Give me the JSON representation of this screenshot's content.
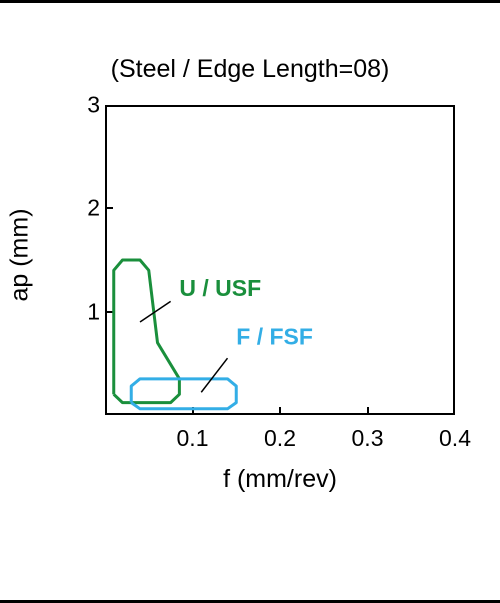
{
  "chart": {
    "type": "region-outline",
    "title": "(Steel / Edge Length=08)",
    "title_fontsize": 25,
    "title_color": "#000000",
    "background_color": "#ffffff",
    "border_color": "#000000",
    "border_width": 2,
    "xlabel": "f (mm/rev)",
    "ylabel": "ap (mm)",
    "label_fontsize": 25,
    "tick_fontsize": 23,
    "xlim": [
      0,
      0.4
    ],
    "ylim": [
      0,
      3
    ],
    "xticks": [
      0,
      0.1,
      0.2,
      0.3,
      0.4
    ],
    "yticks": [
      0,
      1,
      2,
      3
    ],
    "xtick_labels": [
      "",
      "0.1",
      "0.2",
      "0.3",
      "0.4"
    ],
    "ytick_labels": [
      "",
      "1",
      "2",
      "3"
    ],
    "series": {
      "u_usf": {
        "label": "U / USF",
        "color": "#1a8f3c",
        "line_width": 3,
        "points": [
          [
            0.01,
            0.2
          ],
          [
            0.01,
            1.4
          ],
          [
            0.02,
            1.5
          ],
          [
            0.04,
            1.5
          ],
          [
            0.05,
            1.4
          ],
          [
            0.06,
            0.7
          ],
          [
            0.085,
            0.35
          ],
          [
            0.085,
            0.2
          ],
          [
            0.075,
            0.12
          ],
          [
            0.02,
            0.12
          ],
          [
            0.01,
            0.2
          ]
        ],
        "label_pos": [
          0.085,
          1.15
        ],
        "leader_from": [
          0.04,
          0.9
        ],
        "leader_to": [
          0.075,
          1.1
        ]
      },
      "f_fsf": {
        "label": "F / FSF",
        "color": "#33aee6",
        "line_width": 3,
        "points": [
          [
            0.03,
            0.12
          ],
          [
            0.03,
            0.28
          ],
          [
            0.04,
            0.35
          ],
          [
            0.14,
            0.35
          ],
          [
            0.15,
            0.28
          ],
          [
            0.15,
            0.12
          ],
          [
            0.14,
            0.06
          ],
          [
            0.04,
            0.06
          ],
          [
            0.03,
            0.12
          ]
        ],
        "label_pos": [
          0.15,
          0.68
        ],
        "leader_from": [
          0.11,
          0.22
        ],
        "leader_to": [
          0.14,
          0.55
        ]
      }
    }
  }
}
